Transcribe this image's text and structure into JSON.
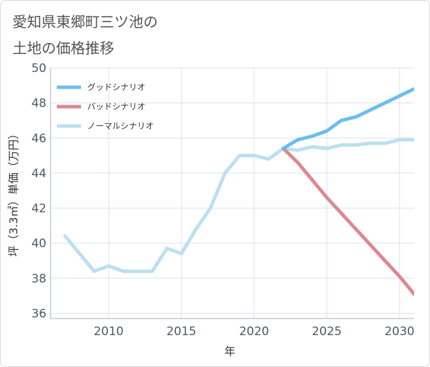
{
  "title_lines": [
    "愛知県東郷町三ツ池の",
    "土地の価格推移"
  ],
  "colors": {
    "good": "#6bbdef",
    "bad": "#dd8890",
    "normal": "#bcdff0",
    "grid": "#d8e3ec",
    "axis": "#a0acb8"
  },
  "chart_data": {
    "type": "line",
    "title": "愛知県東郷町三ツ池の土地の価格推移",
    "xlabel": "年",
    "ylabel": "坪（3.3㎡）単価（万円）",
    "xlim": [
      2006,
      2031
    ],
    "ylim": [
      35.7,
      50
    ],
    "xticks": [
      2010,
      2015,
      2020,
      2025,
      2030
    ],
    "yticks": [
      36,
      38,
      40,
      42,
      44,
      46,
      48,
      50
    ],
    "grid": true,
    "legend_position": "top-left",
    "series": [
      {
        "name": "グッドシナリオ",
        "key": "good",
        "x": [
          2022,
          2023,
          2024,
          2025,
          2026,
          2027,
          2028,
          2029,
          2030,
          2031
        ],
        "y": [
          45.4,
          45.9,
          46.1,
          46.4,
          47.0,
          47.2,
          47.6,
          48.0,
          48.4,
          48.8
        ]
      },
      {
        "name": "バッドシナリオ",
        "key": "bad",
        "x": [
          2022,
          2023,
          2024,
          2025,
          2026,
          2027,
          2028,
          2029,
          2030,
          2031
        ],
        "y": [
          45.4,
          44.6,
          43.6,
          42.6,
          41.7,
          40.8,
          39.9,
          39.0,
          38.1,
          37.1
        ]
      },
      {
        "name": "ノーマルシナリオ",
        "key": "normal",
        "x": [
          2007,
          2008,
          2009,
          2010,
          2011,
          2012,
          2013,
          2014,
          2015,
          2016,
          2017,
          2018,
          2019,
          2020,
          2021,
          2022,
          2023,
          2024,
          2025,
          2026,
          2027,
          2028,
          2029,
          2030,
          2031
        ],
        "y": [
          40.4,
          39.4,
          38.4,
          38.7,
          38.4,
          38.4,
          38.4,
          39.7,
          39.4,
          40.8,
          42.0,
          44.0,
          45.0,
          45.0,
          44.8,
          45.4,
          45.3,
          45.5,
          45.4,
          45.6,
          45.6,
          45.7,
          45.7,
          45.9,
          45.9
        ]
      }
    ]
  }
}
